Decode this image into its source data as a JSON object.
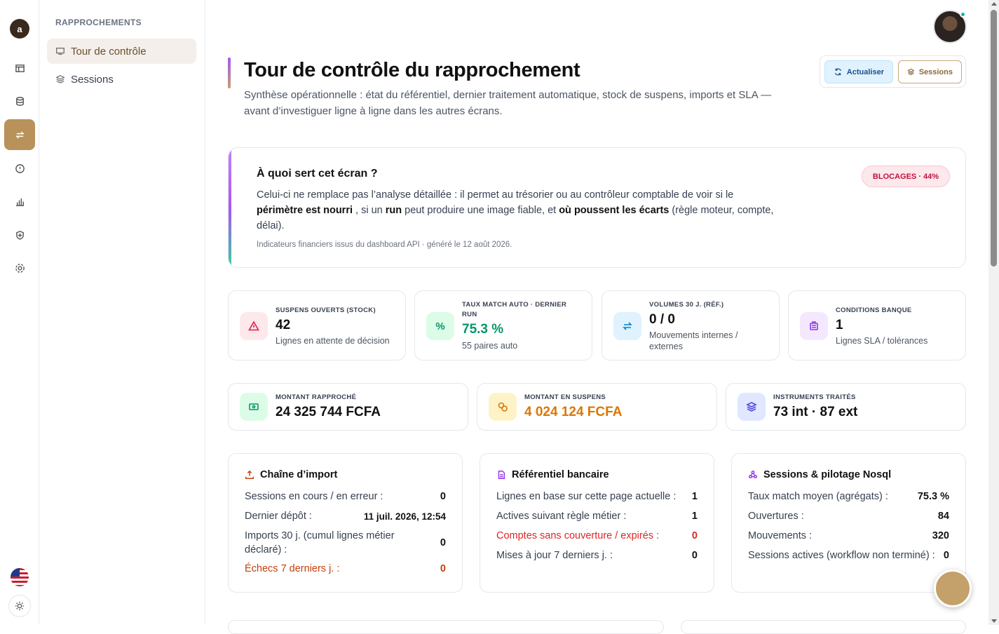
{
  "rail": {
    "logo_text": "a",
    "items": [
      "dashboard-icon",
      "database-icon",
      "transfer-icon",
      "alert-icon",
      "chart-icon",
      "shield-icon",
      "settings-icon"
    ],
    "accent": "#b8925a"
  },
  "sidebar": {
    "section": "RAPPROCHEMENTS",
    "items": [
      {
        "label": "Tour de contrôle",
        "active": true
      },
      {
        "label": "Sessions",
        "active": false
      }
    ]
  },
  "header": {
    "title": "Tour de contrôle du rapprochement",
    "subtitle": "Synthèse opérationnelle : état du référentiel, dernier traitement automatique, stock de suspens, imports et SLA — avant d’investiguer ligne à ligne dans les autres écrans.",
    "refresh_label": "Actualiser",
    "sessions_label": "Sessions"
  },
  "info": {
    "title": "À quoi sert cet écran ?",
    "p1": "Celui-ci ne remplace pas l’analyse détaillée : il permet au trésorier ou au contrôleur comptable de voir si le ",
    "b1": "périmètre est nourri",
    "p2": " , si un ",
    "b2": "run",
    "p3": " peut produire une image fiable, et ",
    "b3": "où poussent les écarts",
    "p4": " (règle moteur, compte, délai).",
    "footer": "Indicateurs financiers issus du dashboard API · généré le 12 août 2026.",
    "badge": "BLOCAGES · 44%"
  },
  "kpis": [
    {
      "label": "SUSPENS OUVERTS (STOCK)",
      "value": "42",
      "desc": "Lignes en attente de décision",
      "icon": "warning-icon",
      "color": "#e11d48"
    },
    {
      "label": "TAUX MATCH AUTO · DERNIER RUN",
      "value": "75.3 %",
      "desc": "55 paires auto",
      "icon": "percent-icon",
      "color": "#059669"
    },
    {
      "label": "VOLUMES 30 J. (RÉF.)",
      "value": "0 / 0",
      "desc": "Mouvements internes / externes",
      "icon": "transfer-icon",
      "color": "#0284c7"
    },
    {
      "label": "CONDITIONS BANQUE",
      "value": "1",
      "desc": "Lignes SLA / tolérances",
      "icon": "bank-icon",
      "color": "#9333ea"
    }
  ],
  "amounts": [
    {
      "label": "MONTANT RAPPROCHÉ",
      "value": "24 325 744 FCFA",
      "icon": "cash-icon",
      "color": "#059669"
    },
    {
      "label": "MONTANT EN SUSPENS",
      "value": "4 024 124 FCFA",
      "icon": "coins-icon",
      "color": "#d97706"
    },
    {
      "label": "INSTRUMENTS TRAITÉS",
      "value": "73 int · 87 ext",
      "icon": "layers-icon",
      "color": "#4f46e5"
    }
  ],
  "panels": {
    "import": {
      "title": "Chaîne d’import",
      "rows": [
        {
          "k": "Sessions en cours / en erreur :",
          "v": "0"
        },
        {
          "k": "Dernier dépôt :",
          "v": "11 juil. 2026, 12:54"
        },
        {
          "k": "Imports 30 j. (cumul lignes métier déclaré) :",
          "v": "0"
        },
        {
          "k": "Échecs 7 derniers j. :",
          "v": "0"
        }
      ]
    },
    "bank": {
      "title": "Référentiel bancaire",
      "rows": [
        {
          "k": "Lignes en base sur cette page actuelle :",
          "v": "1"
        },
        {
          "k": "Actives suivant règle métier :",
          "v": "1"
        },
        {
          "k": "Comptes sans couverture / expirés :",
          "v": "0"
        },
        {
          "k": "Mises à jour 7 derniers j. :",
          "v": "0"
        }
      ]
    },
    "sessions": {
      "title": "Sessions & pilotage Nosql",
      "rows": [
        {
          "k": "Taux match moyen (agrégats) :",
          "v": "75.3 %"
        },
        {
          "k": "Ouvertures :",
          "v": "84"
        },
        {
          "k": "Mouvements :",
          "v": "320"
        },
        {
          "k": "Sessions actives (workflow non terminé) :",
          "v": "0"
        }
      ]
    }
  }
}
